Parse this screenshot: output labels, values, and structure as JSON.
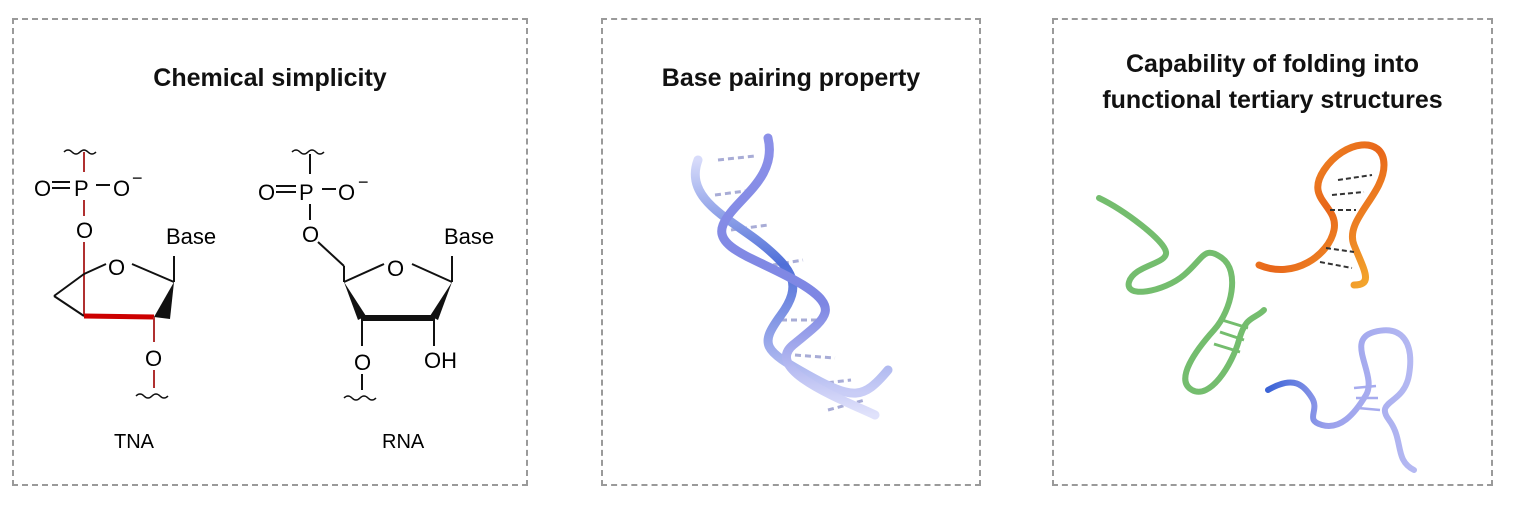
{
  "panels": [
    {
      "title": "Chemical simplicity"
    },
    {
      "title": "Base pairing property"
    },
    {
      "title_line1": "Capability of folding into",
      "title_line2": "functional tertiary structures"
    }
  ],
  "tna": {
    "name": "TNA",
    "o_left": "O",
    "p": "P",
    "o_right": "O",
    "charge": "−",
    "o_link": "O",
    "o_ring": "O",
    "base": "Base",
    "o_bottom": "O"
  },
  "rna": {
    "name": "RNA",
    "o_left": "O",
    "p": "P",
    "o_right": "O",
    "charge": "−",
    "o_link": "O",
    "o_ring": "O",
    "base": "Base",
    "o_bottom": "O",
    "oh": "OH"
  },
  "colors": {
    "tna_highlight": "#cc0000",
    "helix": "#4f6fd8",
    "green_strand": "#6fba6a",
    "orange_strand": "#f08a1c",
    "blue_strand": "#8a93e6"
  }
}
